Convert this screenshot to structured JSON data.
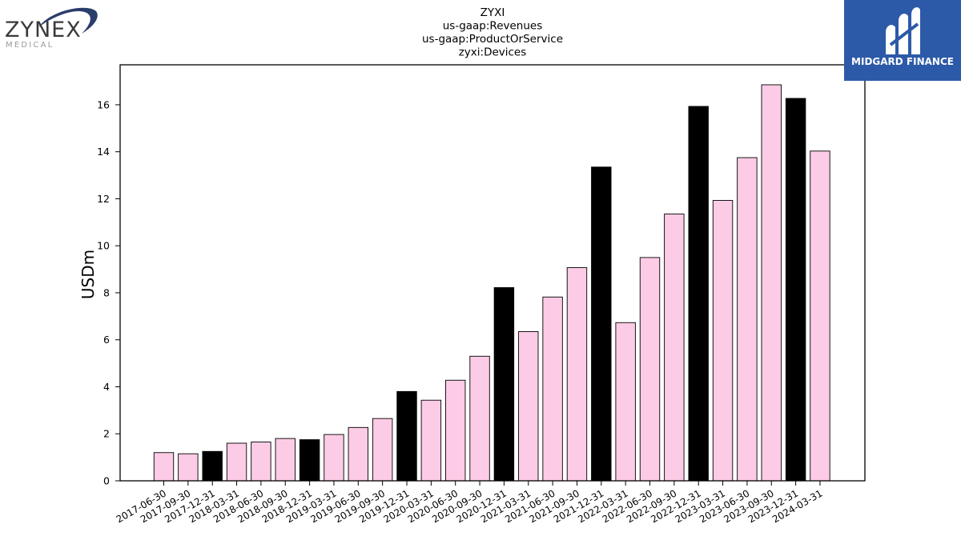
{
  "logos": {
    "left": {
      "name": "ZYNEX",
      "sub": "MEDICAL"
    },
    "right": {
      "name": "MIDGARD FINANCE"
    }
  },
  "chart_data": {
    "type": "bar",
    "title": [
      "ZYXI",
      "us-gaap:Revenues",
      "us-gaap:ProductOrService",
      "zyxi:Devices"
    ],
    "xlabel": "",
    "ylabel": "USDm",
    "ylim": [
      0,
      17.7
    ],
    "yticks": [
      0,
      2,
      4,
      6,
      8,
      10,
      12,
      14,
      16
    ],
    "grid": false,
    "colors": {
      "quarter": "#fccbe5",
      "year_end": "#000000",
      "edge": "#000000"
    },
    "categories": [
      "2017-06-30",
      "2017-09-30",
      "2017-12-31",
      "2018-03-31",
      "2018-06-30",
      "2018-09-30",
      "2018-12-31",
      "2019-03-31",
      "2019-06-30",
      "2019-09-30",
      "2019-12-31",
      "2020-03-31",
      "2020-06-30",
      "2020-09-30",
      "2020-12-31",
      "2021-03-31",
      "2021-06-30",
      "2021-09-30",
      "2021-12-31",
      "2022-03-31",
      "2022-06-30",
      "2022-09-30",
      "2022-12-31",
      "2023-03-31",
      "2023-06-30",
      "2023-09-30",
      "2023-12-31",
      "2024-03-31"
    ],
    "values": [
      1.2,
      1.15,
      1.25,
      1.6,
      1.65,
      1.8,
      1.75,
      1.97,
      2.27,
      2.65,
      3.8,
      3.43,
      4.28,
      5.3,
      8.22,
      6.35,
      7.82,
      9.07,
      13.35,
      6.73,
      9.5,
      11.35,
      15.93,
      11.93,
      13.75,
      16.85,
      16.27,
      14.03
    ],
    "year_end": [
      false,
      false,
      true,
      false,
      false,
      false,
      true,
      false,
      false,
      false,
      true,
      false,
      false,
      false,
      true,
      false,
      false,
      false,
      true,
      false,
      false,
      false,
      true,
      false,
      false,
      false,
      true,
      false
    ]
  }
}
